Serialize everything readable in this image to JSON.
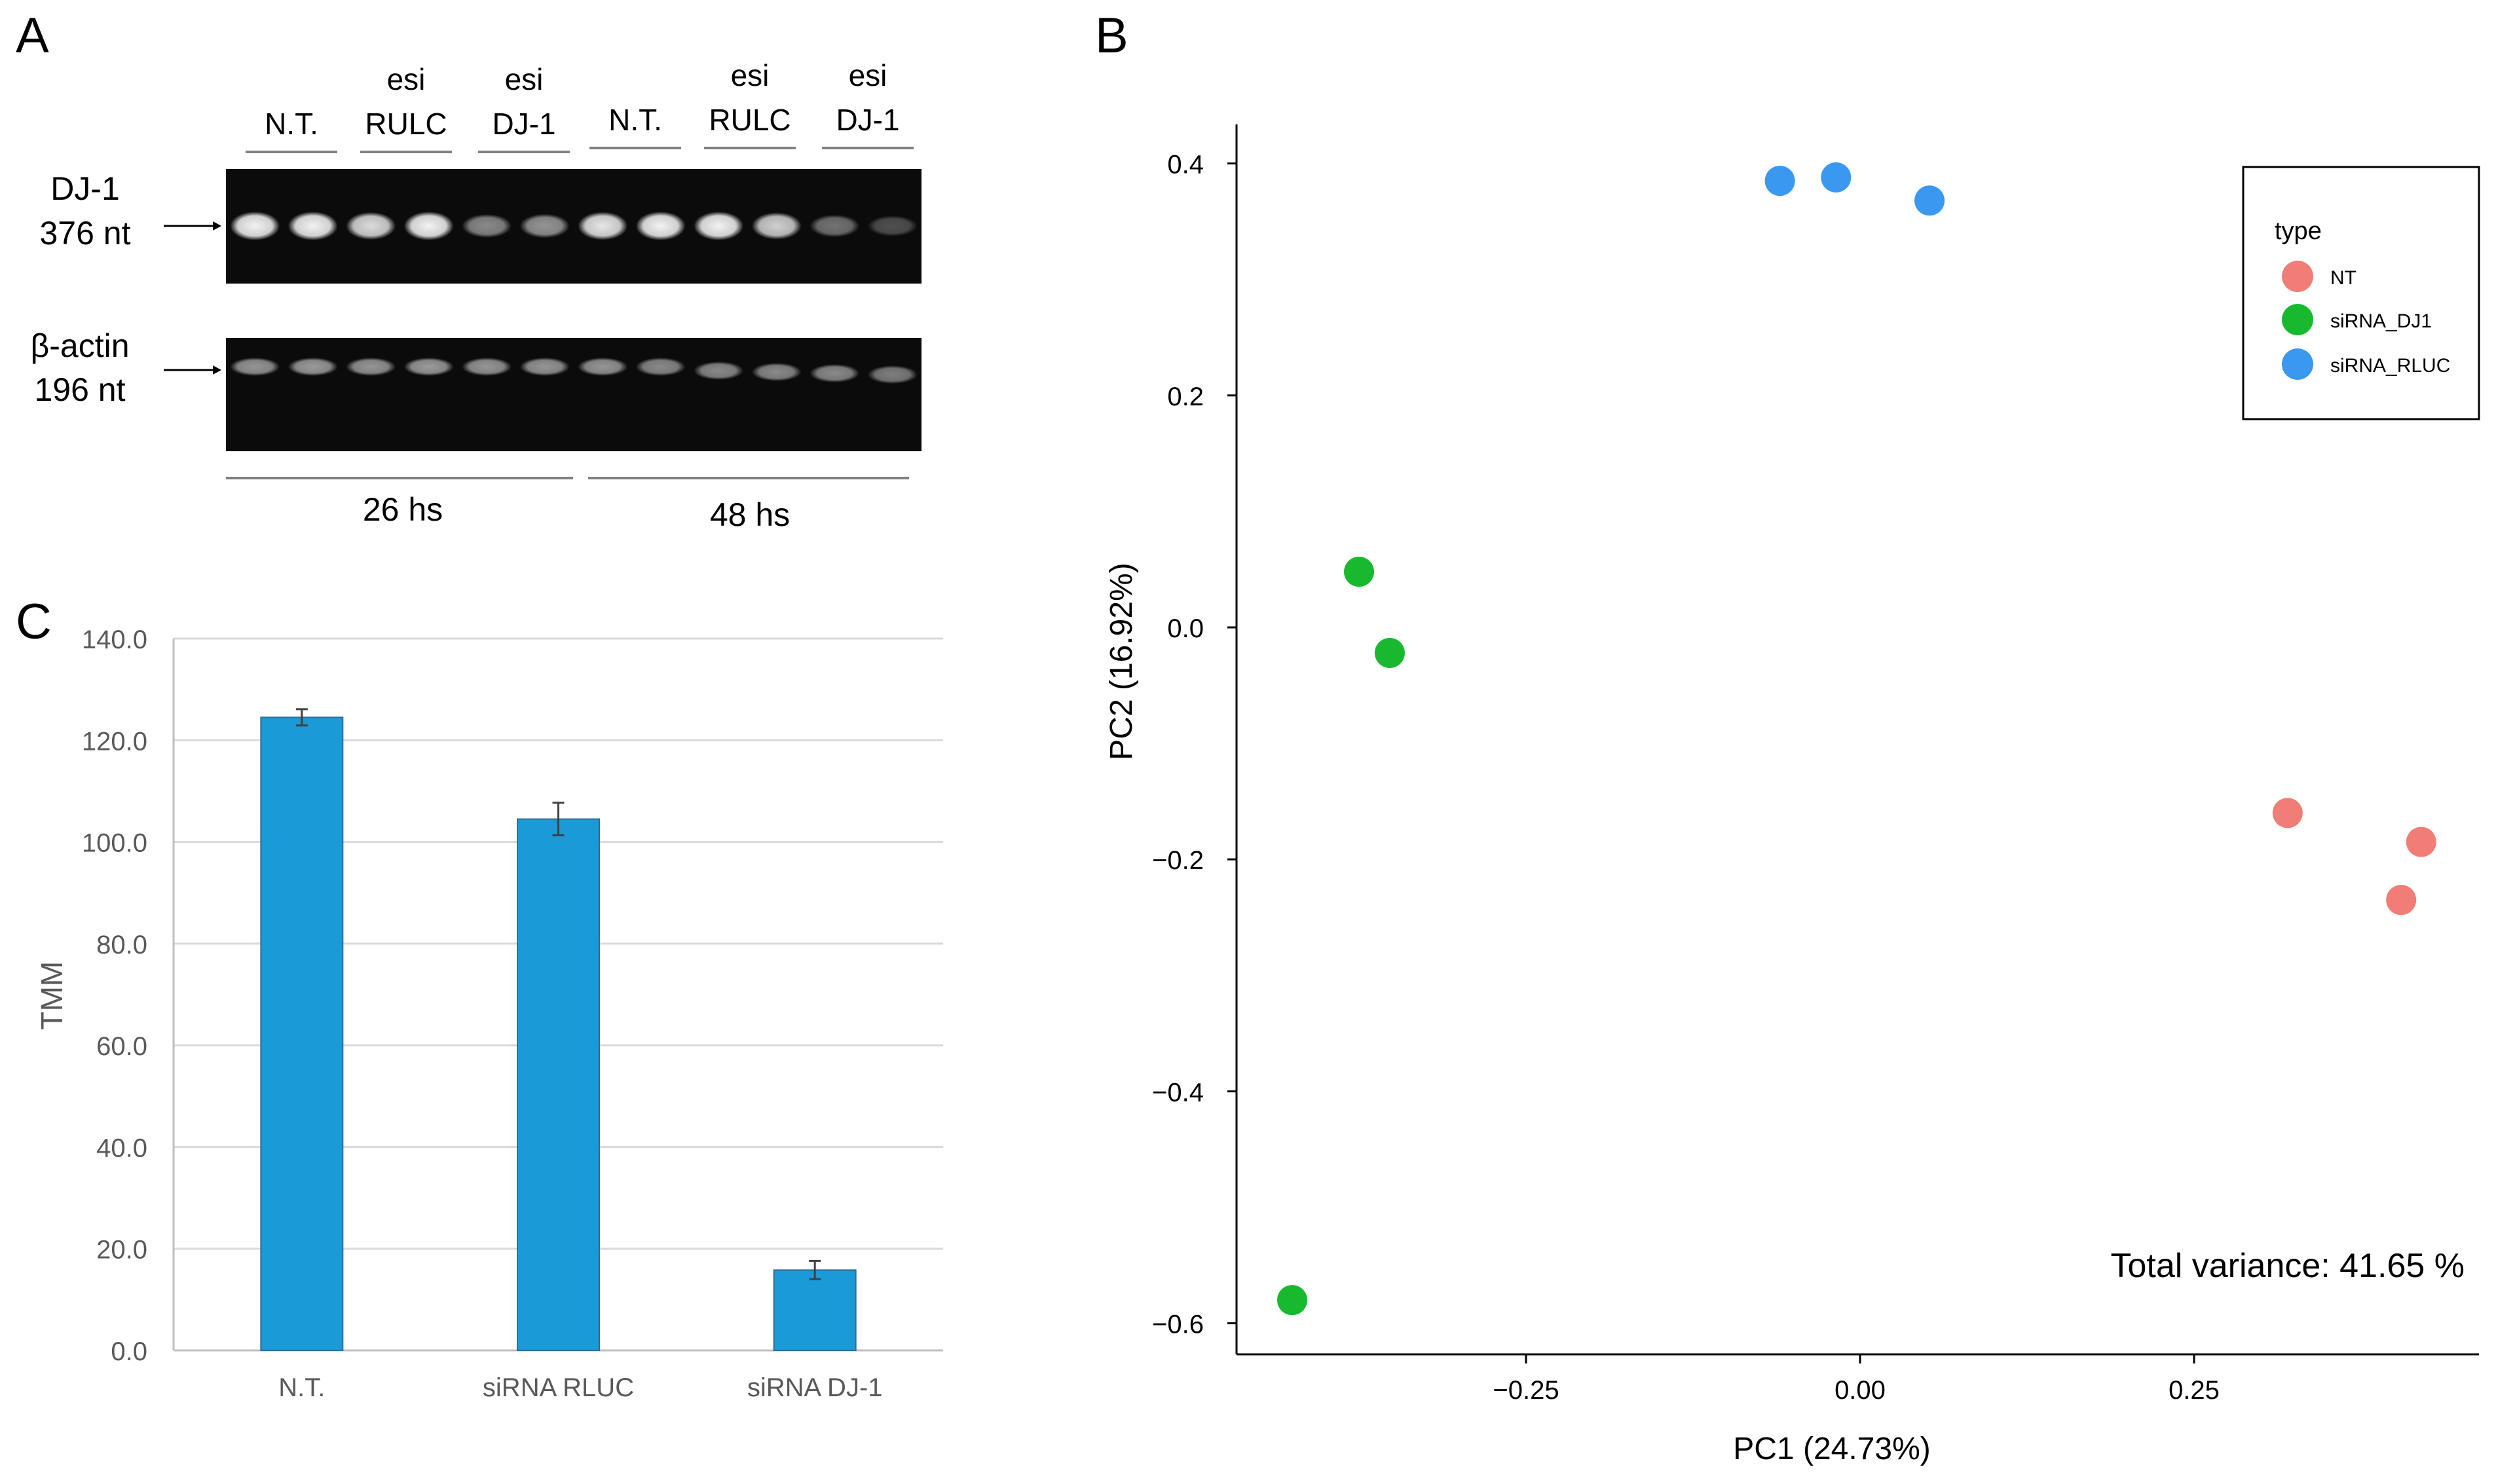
{
  "colors": {
    "nt": "#F07E76",
    "sirna_dj1": "#19B92F",
    "sirna_rluc": "#3A98F0",
    "bar_fill": "#1A9AD7",
    "bar_stroke": "#2E6E98",
    "grid": "#D9D9D9",
    "gel_bg": "#0B0B0B",
    "band": "#F2F2F2"
  },
  "panel_a": {
    "label": "A",
    "lane_groups": [
      {
        "line1": "",
        "line2": "N.T."
      },
      {
        "line1": "esi",
        "line2": "RULC"
      },
      {
        "line1": "esi",
        "line2": "DJ-1"
      },
      {
        "line1": "",
        "line2": "N.T."
      },
      {
        "line1": "esi",
        "line2": "RULC"
      },
      {
        "line1": "esi",
        "line2": "DJ-1"
      }
    ],
    "dj1_label_line1": "DJ-1",
    "dj1_label_line2": "376 nt",
    "actin_label_line1": "β-actin",
    "actin_label_line2": "196 nt",
    "time_labels": [
      "26 hs",
      "48 hs"
    ],
    "dj1_band_intensity": [
      1.0,
      1.0,
      0.9,
      1.0,
      0.55,
      0.6,
      0.95,
      1.0,
      1.0,
      0.85,
      0.45,
      0.3
    ],
    "actin_band_intensity": [
      0.6,
      0.62,
      0.6,
      0.62,
      0.6,
      0.6,
      0.6,
      0.55,
      0.55,
      0.55,
      0.55,
      0.5
    ]
  },
  "panel_b": {
    "label": "B",
    "legend_title": "type",
    "total_variance": "Total variance: 41.65 %"
  },
  "panel_c": {
    "label": "C"
  },
  "chart_data": [
    {
      "type": "scatter",
      "title": "",
      "xlabel": "PC1 (24.73%)",
      "ylabel": "PC2 (16.92%)",
      "xlim": [
        -0.46,
        0.46
      ],
      "ylim": [
        -0.63,
        0.44
      ],
      "x_ticks": [
        -0.25,
        0.0,
        0.25
      ],
      "x_tick_labels": [
        "−0.25",
        "0.00",
        "0.25"
      ],
      "y_ticks": [
        0.4,
        0.2,
        0.0,
        -0.2,
        -0.4,
        -0.6
      ],
      "y_tick_labels": [
        "0.4",
        "0.2",
        "0.0",
        "−0.2",
        "−0.4",
        "−0.6"
      ],
      "legend_position": "top-right",
      "series": [
        {
          "name": "NT",
          "color": "#F07E76",
          "points": [
            [
              0.32,
              -0.16
            ],
            [
              0.42,
              -0.185
            ],
            [
              0.405,
              -0.235
            ]
          ]
        },
        {
          "name": "siRNA_DJ1",
          "color": "#19B92F",
          "points": [
            [
              -0.375,
              0.048
            ],
            [
              -0.352,
              -0.022
            ],
            [
              -0.425,
              -0.58
            ]
          ]
        },
        {
          "name": "siRNA_RLUC",
          "color": "#3A98F0",
          "points": [
            [
              -0.06,
              0.385
            ],
            [
              -0.018,
              0.388
            ],
            [
              0.052,
              0.368
            ]
          ]
        }
      ]
    },
    {
      "type": "bar",
      "title": "",
      "xlabel": "",
      "ylabel": "TMM",
      "ylim": [
        0,
        140
      ],
      "y_ticks": [
        0,
        20,
        40,
        60,
        80,
        100,
        120,
        140
      ],
      "y_tick_labels": [
        "0.0",
        "20.0",
        "40.0",
        "60.0",
        "80.0",
        "100.0",
        "120.0",
        "140.0"
      ],
      "categories": [
        "N.T.",
        "siRNA RLUC",
        "siRNA DJ-1"
      ],
      "values": [
        124.5,
        104.5,
        15.8
      ],
      "errors": [
        1.6,
        3.2,
        1.8
      ],
      "grid": true
    }
  ]
}
